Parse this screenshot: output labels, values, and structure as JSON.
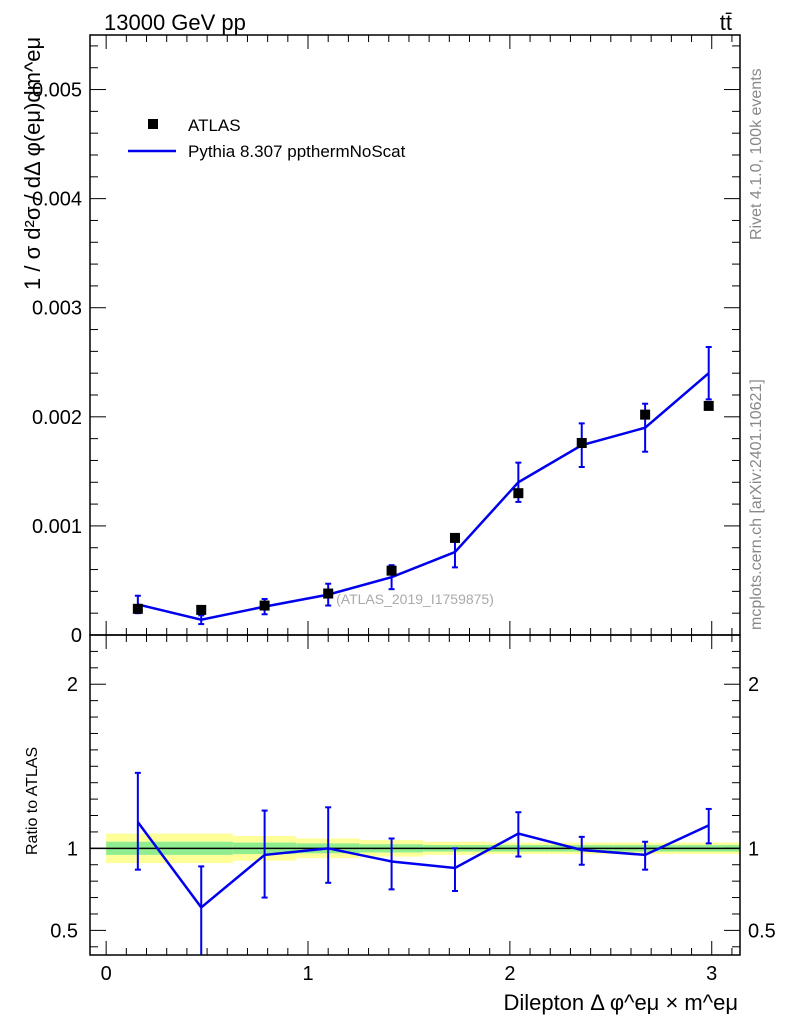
{
  "header": {
    "left_label": "13000 GeV pp",
    "right_label": "tt̄"
  },
  "side_labels": {
    "rivet": "Rivet 4.1.0,  100k events",
    "mcplots": "mcplots.cern.ch [arXiv:2401.10621]"
  },
  "watermark": "(ATLAS_2019_I1759875)",
  "colors": {
    "mc_line": "#0000ee",
    "data_marker": "#000000",
    "band_inner": "#90ee90",
    "band_outer": "#ffff99"
  },
  "chart_data": [
    {
      "type": "scatter",
      "panel": "main",
      "xlabel": "Dilepton Δ φ^eμ × m^eμ",
      "ylabel": "1 / σ  d²σ / dΔ φ(eμ)dm^eμ",
      "xlim": [
        -0.08,
        3.14
      ],
      "ylim": [
        0,
        0.0055
      ],
      "ytick_labels": [
        "0",
        "0.001",
        "0.002",
        "0.003",
        "0.004",
        "0.005"
      ],
      "ytick_values": [
        0,
        0.001,
        0.002,
        0.003,
        0.004,
        0.005
      ],
      "legend_position": "top-left",
      "series": [
        {
          "name": "ATLAS",
          "kind": "markers",
          "x": [
            0.157,
            0.471,
            0.785,
            1.1,
            1.414,
            1.728,
            2.042,
            2.356,
            2.67,
            2.985
          ],
          "y": [
            0.00024,
            0.00023,
            0.00027,
            0.00038,
            0.00059,
            0.00089,
            0.0013,
            0.00176,
            0.00202,
            0.0021
          ]
        },
        {
          "name": "Pythia 8.307 ppthermNoScat",
          "kind": "line",
          "x": [
            0.157,
            0.471,
            0.785,
            1.1,
            1.414,
            1.728,
            2.042,
            2.356,
            2.67,
            2.985
          ],
          "y": [
            0.00028,
            0.00014,
            0.00026,
            0.00037,
            0.00053,
            0.00076,
            0.0014,
            0.00174,
            0.0019,
            0.0024
          ],
          "yerr": [
            8e-05,
            4e-05,
            7e-05,
            0.0001,
            0.00011,
            0.00014,
            0.00018,
            0.0002,
            0.00022,
            0.00024
          ]
        }
      ]
    },
    {
      "type": "line",
      "panel": "ratio",
      "xlabel": "Dilepton Δ φ^eμ × m^eμ",
      "ylabel": "Ratio to ATLAS",
      "xlim": [
        -0.08,
        3.14
      ],
      "ylim": [
        0.35,
        2.3
      ],
      "xtick_labels": [
        "0",
        "1",
        "2",
        "3"
      ],
      "xtick_values": [
        0,
        1,
        2,
        3
      ],
      "ytick_labels": [
        "0.5",
        "1",
        "2"
      ],
      "ytick_values": [
        0.5,
        1,
        2
      ],
      "bin_edges": [
        0.0,
        0.314,
        0.628,
        0.942,
        1.256,
        1.57,
        1.884,
        2.198,
        2.512,
        2.826,
        3.14
      ],
      "band_inner_half_width": [
        0.04,
        0.04,
        0.035,
        0.03,
        0.025,
        0.02,
        0.02,
        0.02,
        0.02,
        0.02
      ],
      "band_outer_half_width": [
        0.09,
        0.09,
        0.075,
        0.06,
        0.05,
        0.04,
        0.035,
        0.035,
        0.035,
        0.035
      ],
      "series": [
        {
          "name": "Pythia 8.307 ppthermNoScat",
          "x": [
            0.157,
            0.471,
            0.785,
            1.1,
            1.414,
            1.728,
            2.042,
            2.356,
            2.67,
            2.985
          ],
          "y": [
            1.16,
            0.64,
            0.96,
            1.0,
            0.92,
            0.88,
            1.09,
            0.99,
            0.96,
            1.14
          ],
          "yerr_low": [
            0.29,
            0.35,
            0.26,
            0.21,
            0.17,
            0.14,
            0.14,
            0.09,
            0.09,
            0.11
          ],
          "yerr_high": [
            0.3,
            0.25,
            0.27,
            0.25,
            0.14,
            0.12,
            0.13,
            0.08,
            0.08,
            0.1
          ]
        }
      ]
    }
  ]
}
